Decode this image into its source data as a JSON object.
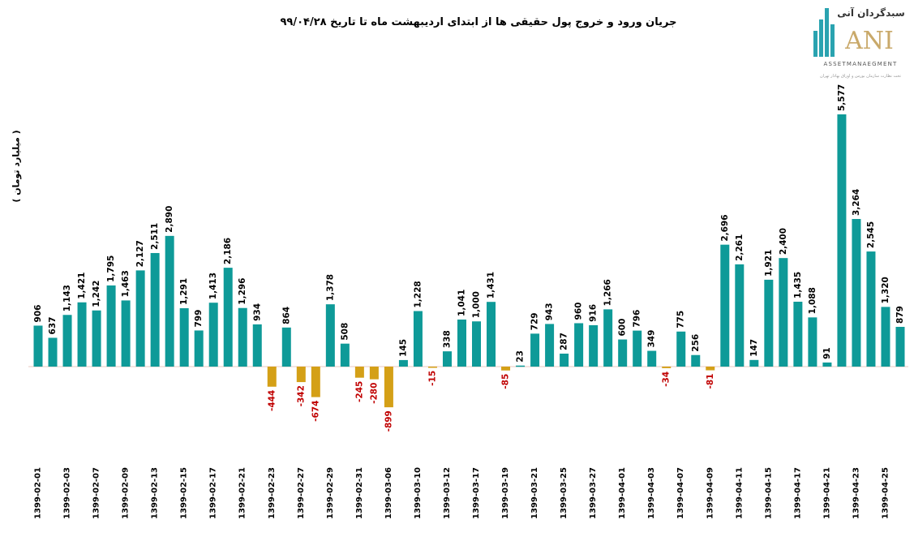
{
  "chart_data": {
    "type": "bar",
    "title": "جریان ورود و خروج پول حقیقی ها از ابتدای اردیبهشت ماه تا تاریخ ۹۹/۰۴/۲۸",
    "xlabel": "",
    "ylabel": "( میلیارد تومان )",
    "categories": [
      "1399-02-01",
      "",
      "1399-02-03",
      "",
      "1399-02-07",
      "",
      "1399-02-09",
      "",
      "1399-02-13",
      "",
      "1399-02-15",
      "",
      "1399-02-17",
      "",
      "1399-02-21",
      "",
      "1399-02-23",
      "",
      "1399-02-27",
      "",
      "1399-02-29",
      "",
      "1399-02-31",
      "",
      "1399-03-06",
      "",
      "1399-03-10",
      "",
      "1399-03-12",
      "",
      "1399-03-17",
      "",
      "1399-03-19",
      "",
      "1399-03-21",
      "",
      "1399-03-25",
      "",
      "1399-03-27",
      "",
      "1399-04-01",
      "",
      "1399-04-03",
      "",
      "1399-04-07",
      "",
      "1399-04-09",
      "",
      "1399-04-11",
      "",
      "1399-04-15",
      "",
      "1399-04-17",
      "",
      "1399-04-21",
      "",
      "1399-04-23",
      "",
      "1399-04-25",
      ""
    ],
    "values": [
      906,
      637,
      1143,
      1421,
      1242,
      1795,
      1463,
      2127,
      2511,
      2890,
      1291,
      799,
      1413,
      2186,
      1296,
      934,
      -444,
      864,
      -342,
      -674,
      1378,
      508,
      -245,
      -280,
      -899,
      145,
      1228,
      -15,
      338,
      1041,
      1000,
      1431,
      -85,
      23,
      729,
      943,
      287,
      960,
      916,
      1266,
      600,
      796,
      349,
      -34,
      775,
      256,
      -81,
      2696,
      2261,
      147,
      1921,
      2400,
      1435,
      1088,
      91,
      5577,
      3264,
      2545,
      1320,
      879
    ],
    "ylim": [
      -899,
      5577
    ],
    "grid": false,
    "legend": "none",
    "colors": {
      "positive": "#0E9A98",
      "negative": "#D4A017",
      "positive_label": "#000000",
      "negative_label": "#C00000"
    }
  },
  "logo": {
    "brand_fa": "سبدگردان آنی",
    "brand_en": "ANI",
    "tagline": "ASSETMANAEGMENT",
    "subtitle": "تحت نظارت سازمان بورس و اوراق بهادار تهران"
  }
}
